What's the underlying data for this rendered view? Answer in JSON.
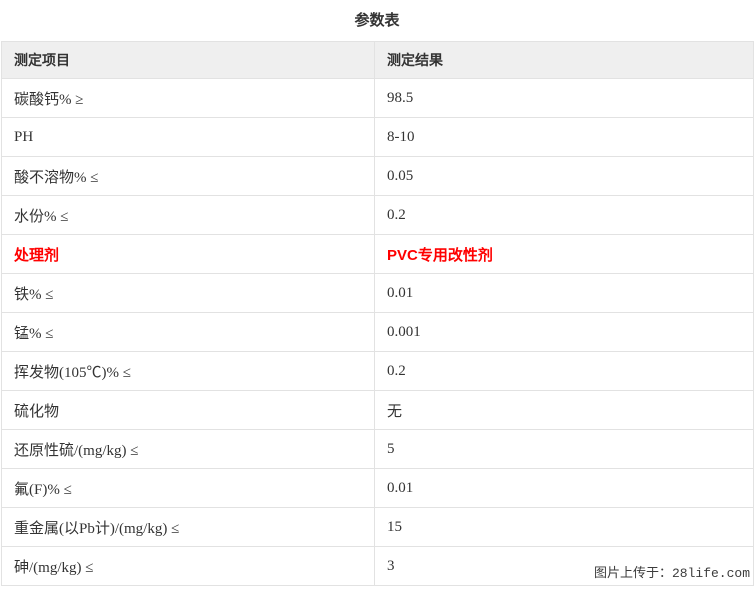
{
  "page": {
    "title": "参数表"
  },
  "table": {
    "headers": {
      "item": "测定项目",
      "result": "测定结果"
    },
    "rows": [
      {
        "item": "碳酸钙% ≥",
        "result": "98.5"
      },
      {
        "item": "PH",
        "result": "8-10"
      },
      {
        "item": "酸不溶物% ≤",
        "result": "0.05"
      },
      {
        "item": "水份% ≤",
        "result": "0.2"
      },
      {
        "item": "处理剂",
        "result": "PVC专用改性剂"
      },
      {
        "item": "铁% ≤",
        "result": "0.01"
      },
      {
        "item": "锰% ≤",
        "result": "0.001"
      },
      {
        "item": "挥发物(105℃)% ≤",
        "result": "0.2"
      },
      {
        "item": "硫化物",
        "result": "无"
      },
      {
        "item": "还原性硫/(mg/kg) ≤",
        "result": "5"
      },
      {
        "item": "氟(F)% ≤",
        "result": "0.01"
      },
      {
        "item": "重金属(以Pb计)/(mg/kg) ≤",
        "result": "15"
      },
      {
        "item": "砷/(mg/kg) ≤",
        "result": "3"
      }
    ],
    "highlight_row_index": 4,
    "colors": {
      "header_background": "#efefef",
      "border": "#e2e2e2",
      "body_text": "#333333",
      "highlight_text": "#ff0000"
    }
  },
  "watermark": {
    "text": "图片上传于：28life.com",
    "color": "#3c3c3c"
  }
}
